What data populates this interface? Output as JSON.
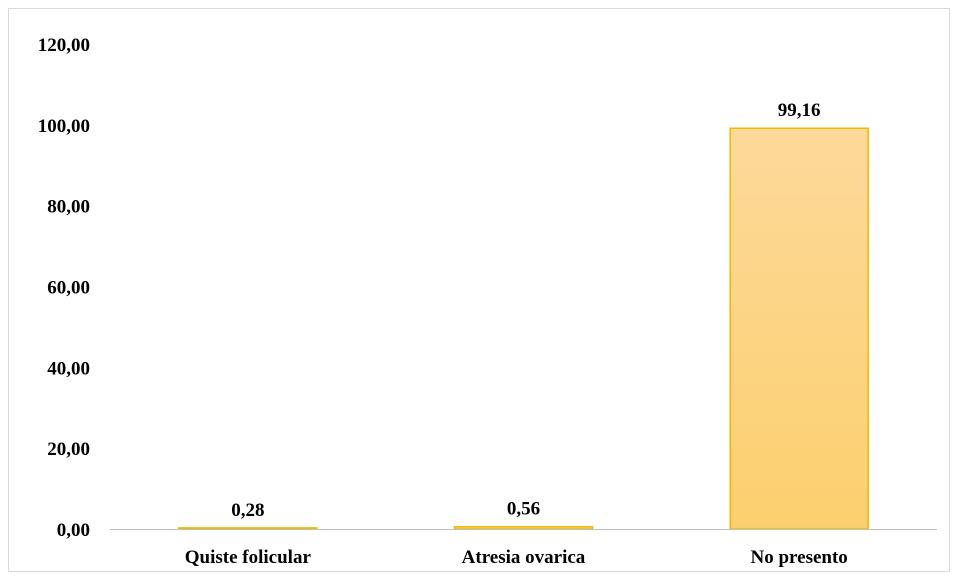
{
  "chart_data": {
    "type": "bar",
    "categories": [
      "Quiste folicular",
      "Atresia ovarica",
      "No presento"
    ],
    "values": [
      0.28,
      0.56,
      99.16
    ],
    "data_labels": [
      "0,28",
      "0,56",
      "99,16"
    ],
    "ylim": [
      0,
      120
    ],
    "yticks": [
      {
        "value": 0,
        "label": "0,00"
      },
      {
        "value": 20,
        "label": "20,00"
      },
      {
        "value": 40,
        "label": "40,00"
      },
      {
        "value": 60,
        "label": "60,00"
      },
      {
        "value": 80,
        "label": "80,00"
      },
      {
        "value": 100,
        "label": "100,00"
      },
      {
        "value": 120,
        "label": "120,00"
      }
    ],
    "grid": false,
    "legend": "none",
    "colors": {
      "bar_fill_top": "#fdd99a",
      "bar_fill_bottom": "#fccf6e",
      "bar_stroke": "#f5b700",
      "axis": "#bfbfbf"
    }
  }
}
